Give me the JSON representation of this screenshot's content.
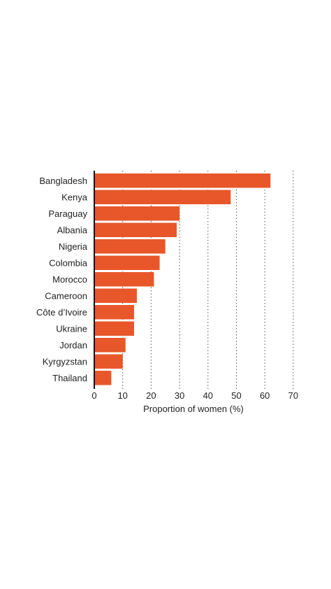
{
  "chart_data": {
    "type": "bar",
    "orientation": "horizontal",
    "categories": [
      "Bangladesh",
      "Kenya",
      "Paraguay",
      "Albania",
      "Nigeria",
      "Colombia",
      "Morocco",
      "Cameroon",
      "Côte d’Ivoire",
      "Ukraine",
      "Jordan",
      "Kyrgyzstan",
      "Thailand"
    ],
    "values": [
      62,
      48,
      30,
      29,
      25,
      23,
      21,
      15,
      14,
      14,
      11,
      10,
      6
    ],
    "xlabel": "Proportion of women (%)",
    "ylabel": "",
    "xlim": [
      0,
      70
    ],
    "xticks": [
      0,
      10,
      20,
      30,
      40,
      50,
      60,
      70
    ],
    "grid": "vertical dotted",
    "bar_color": "#e8572a"
  }
}
